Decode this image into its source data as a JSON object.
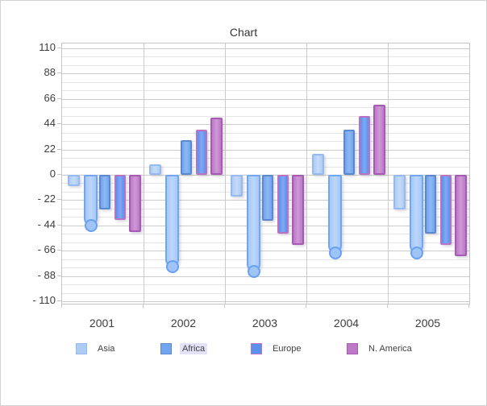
{
  "chart_data": {
    "type": "bar",
    "title": "Chart",
    "xlabel": "",
    "ylabel": "",
    "categories": [
      "2001",
      "2002",
      "2003",
      "2004",
      "2005"
    ],
    "series": [
      {
        "key": "asia",
        "name": "Asia",
        "in_legend": true,
        "style": "column",
        "values": [
          -10,
          9,
          -19,
          18,
          -30
        ],
        "fill": "#adccf4",
        "center": "#c6dbf8",
        "border": "#96b9ef"
      },
      {
        "key": "unlabeled",
        "name": "",
        "in_legend": false,
        "style": "rounded-cap-column",
        "values": [
          -44,
          -80,
          -84,
          -68,
          -68
        ],
        "fill": "#a6c9f7",
        "center": "#bcd6fa",
        "border": "#73a5f3",
        "cap_fill": "#9fc4f6",
        "cap_border": "#6aa0f2"
      },
      {
        "key": "africa",
        "name": "Africa",
        "in_legend": true,
        "style": "column",
        "values": [
          -30,
          30,
          -40,
          39,
          -51
        ],
        "fill": "#70a5ef",
        "center": "#8eb8f3",
        "border": "#5c88d0"
      },
      {
        "key": "europe",
        "name": "Europe",
        "in_legend": true,
        "style": "column",
        "values": [
          -39,
          39,
          -51,
          51,
          -61
        ],
        "fill": "#5b90ed",
        "center": "#81a9f2",
        "border": "#ba72c4"
      },
      {
        "key": "n-america",
        "name": "N. America",
        "in_legend": true,
        "style": "column",
        "values": [
          -50,
          50,
          -61,
          61,
          -71
        ],
        "fill": "#bb79c6",
        "center": "#d098d6",
        "border": "#a65ab4"
      }
    ],
    "y_ticks": [
      "110",
      "88",
      "66",
      "44",
      "22",
      "0",
      "- 22",
      "- 44",
      "- 66",
      "- 88",
      "- 110"
    ],
    "y_tick_values": [
      110,
      88,
      66,
      44,
      22,
      0,
      -22,
      -44,
      -66,
      -88,
      -110
    ],
    "ylim": [
      -114,
      114
    ],
    "minor_gridlines_per_interval": 2,
    "grid": true,
    "legend_position": "bottom",
    "legend": [
      {
        "label": "Asia",
        "series": "asia",
        "highlighted": false
      },
      {
        "label": "Africa",
        "series": "africa",
        "highlighted": true
      },
      {
        "label": "Europe",
        "series": "europe",
        "highlighted": false
      },
      {
        "label": "N. America",
        "series": "n-america",
        "highlighted": false
      }
    ],
    "legend_highlight_color": "#e4e2f8"
  }
}
